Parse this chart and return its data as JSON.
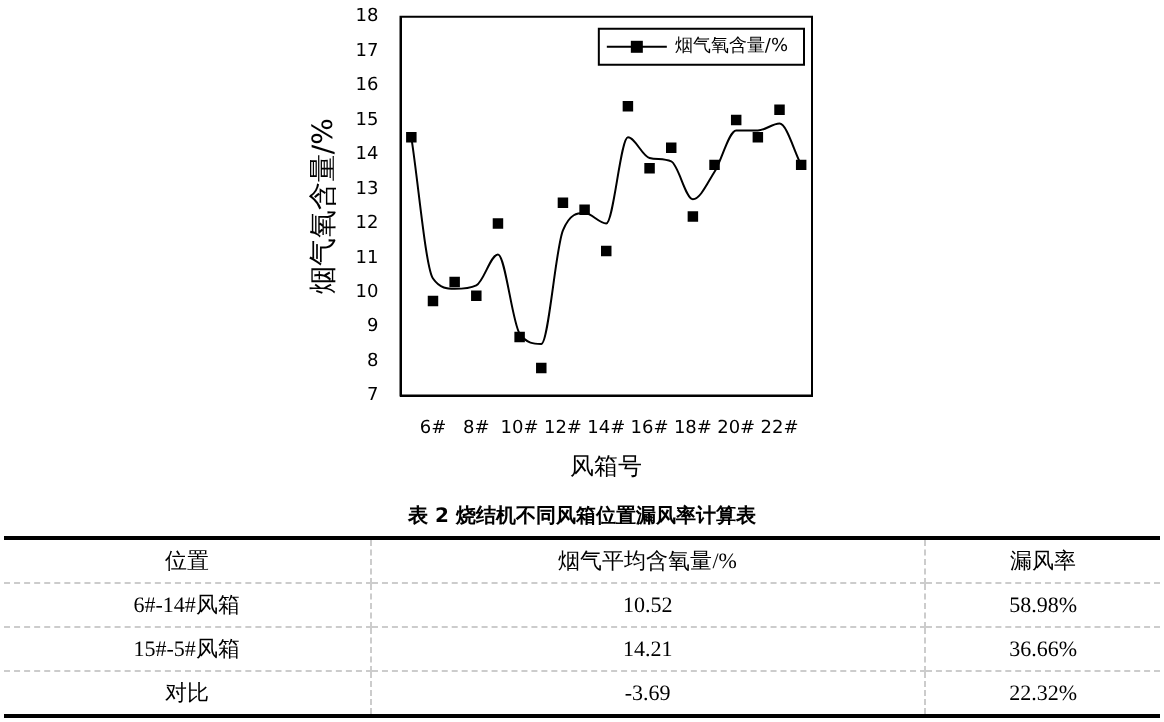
{
  "chart_data": {
    "type": "scatter",
    "xlabel": "风箱号",
    "ylabel": "烟气氧含量/%",
    "categories": [
      null,
      "6#",
      null,
      "8#",
      null,
      "10#",
      null,
      "12#",
      null,
      "14#",
      null,
      "16#",
      null,
      "18#",
      null,
      "20#",
      null,
      "22#",
      null
    ],
    "series": [
      {
        "name": "烟气氧含量/%",
        "marker": "square",
        "color": "#000000",
        "values": [
          14.5,
          9.75,
          10.3,
          9.9,
          12.0,
          8.7,
          7.8,
          12.6,
          12.4,
          11.2,
          15.4,
          13.6,
          14.2,
          12.2,
          13.7,
          15.0,
          14.5,
          15.3,
          13.7
        ]
      },
      {
        "type": "line",
        "marker": "none",
        "color": "#000000",
        "values": [
          14.5,
          10.4,
          10.1,
          10.2,
          11.1,
          8.8,
          8.5,
          11.8,
          12.3,
          12.0,
          14.5,
          13.9,
          13.8,
          12.7,
          13.5,
          14.7,
          14.7,
          14.9,
          13.7
        ]
      }
    ],
    "ylim": [
      7,
      18
    ],
    "yticks": [
      7,
      8,
      9,
      10,
      11,
      12,
      13,
      14,
      15,
      16,
      17,
      18
    ],
    "legend": "top right",
    "annotations": [
      "表 2  烧结机不同风箱位置漏风率计算表",
      "位置",
      "烟气平均含氧量/%",
      "漏风率",
      "6#-14#风箱",
      "10.52",
      "58.98%",
      "15#-5#风箱",
      "14.21",
      "36.66%",
      "对比",
      "-3.69",
      "22.32%"
    ]
  }
}
